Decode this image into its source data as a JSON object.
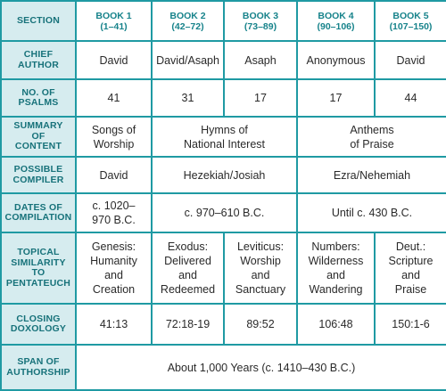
{
  "header": {
    "section": "SECTION",
    "books": [
      {
        "name": "BOOK 1",
        "range": "(1–41)"
      },
      {
        "name": "BOOK 2",
        "range": "(42–72)"
      },
      {
        "name": "BOOK 3",
        "range": "(73–89)"
      },
      {
        "name": "BOOK 4",
        "range": "(90–106)"
      },
      {
        "name": "BOOK 5",
        "range": "(107–150)"
      }
    ]
  },
  "rows": {
    "chief_author": {
      "label": "CHIEF\nAUTHOR",
      "values": [
        "David",
        "David/Asaph",
        "Asaph",
        "Anonymous",
        "David"
      ]
    },
    "no_of_psalms": {
      "label": "NO. OF\nPSALMS",
      "values": [
        "41",
        "31",
        "17",
        "17",
        "44"
      ]
    },
    "summary": {
      "label": "SUMMARY\nOF\nCONTENT",
      "values": [
        "Songs of\nWorship",
        "Hymns of\nNational Interest",
        "Anthems\nof Praise"
      ]
    },
    "possible_compiler": {
      "label": "POSSIBLE\nCOMPILER",
      "values": [
        "David",
        "Hezekiah/Josiah",
        "Ezra/Nehemiah"
      ]
    },
    "dates": {
      "label": "DATES OF\nCOMPILATION",
      "values": [
        "c. 1020–\n970 B.C.",
        "c. 970–610 B.C.",
        "Until c. 430 B.C."
      ]
    },
    "topical": {
      "label": "TOPICAL\nSIMILARITY\nTO\nPENTATEUCH",
      "values": [
        "Genesis:\nHumanity\nand\nCreation",
        "Exodus:\nDelivered\nand\nRedeemed",
        "Leviticus:\nWorship\nand\nSanctuary",
        "Numbers:\nWilderness\nand\nWandering",
        "Deut.:\nScripture\nand\nPraise"
      ]
    },
    "closing": {
      "label": "CLOSING\nDOXOLOGY",
      "values": [
        "41:13",
        "72:18-19",
        "89:52",
        "106:48",
        "150:1-6"
      ]
    },
    "span": {
      "label": "SPAN OF\nAUTHORSHIP",
      "value": "About 1,000 Years (c. 1410–430 B.C.)"
    }
  },
  "colors": {
    "border": "#1f9aa3",
    "header_text": "#17838b",
    "row_header_bg": "#d6ecef",
    "row_header_text": "#17727a",
    "cell_text": "#2a2a2a"
  }
}
